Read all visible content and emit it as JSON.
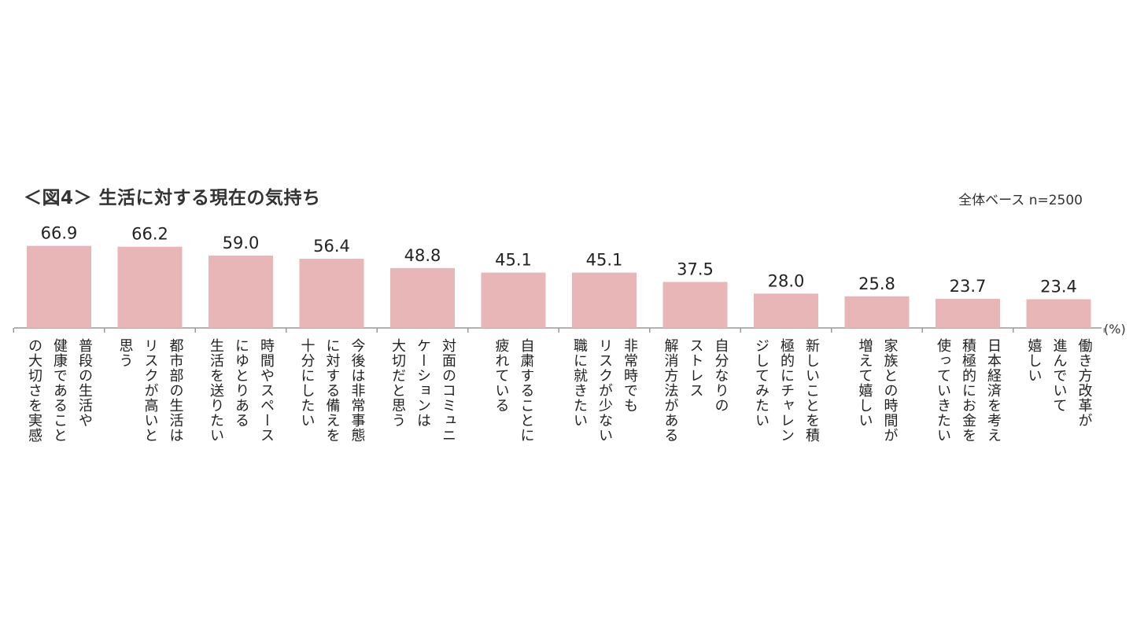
{
  "chart_data": {
    "type": "bar",
    "title": "＜図4＞ 生活に対する現在の気持ち",
    "base_note": "全体ベース n=2500",
    "unit_label": "(%)",
    "ylim": [
      0,
      100
    ],
    "categories": [
      [
        "普段の生活や",
        "健康であること",
        "の大切さを実感"
      ],
      [
        "都市部の生活は",
        "リスクが高いと",
        "思う"
      ],
      [
        "時間やスペース",
        "にゆとりある",
        "生活を送りたい"
      ],
      [
        "今後は非常事態",
        "に対する備えを",
        "十分にしたい"
      ],
      [
        "対面のコミュニ",
        "ケーションは",
        "大切だと思う"
      ],
      [
        "自粛することに",
        "疲れている"
      ],
      [
        "非常時でも",
        "リスクが少ない",
        "職に就きたい"
      ],
      [
        "自分なりの",
        "ストレス",
        "解消方法がある"
      ],
      [
        "新しいことを積",
        "極的にチャレン",
        "ジしてみたい"
      ],
      [
        "家族との時間が",
        "増えて嬉しい"
      ],
      [
        "日本経済を考え",
        "積極的にお金を",
        "使っていきたい"
      ],
      [
        "働き方改革が",
        "進んでいて",
        "嬉しい"
      ]
    ],
    "values": [
      66.9,
      66.2,
      59.0,
      56.4,
      48.8,
      45.1,
      45.1,
      37.5,
      28.0,
      25.8,
      23.7,
      23.4
    ],
    "value_labels": [
      "66.9",
      "66.2",
      "59.0",
      "56.4",
      "48.8",
      "45.1",
      "45.1",
      "37.5",
      "28.0",
      "25.8",
      "23.7",
      "23.4"
    ],
    "bar_color": "#e8b6b6",
    "axis_color": "#999999"
  }
}
